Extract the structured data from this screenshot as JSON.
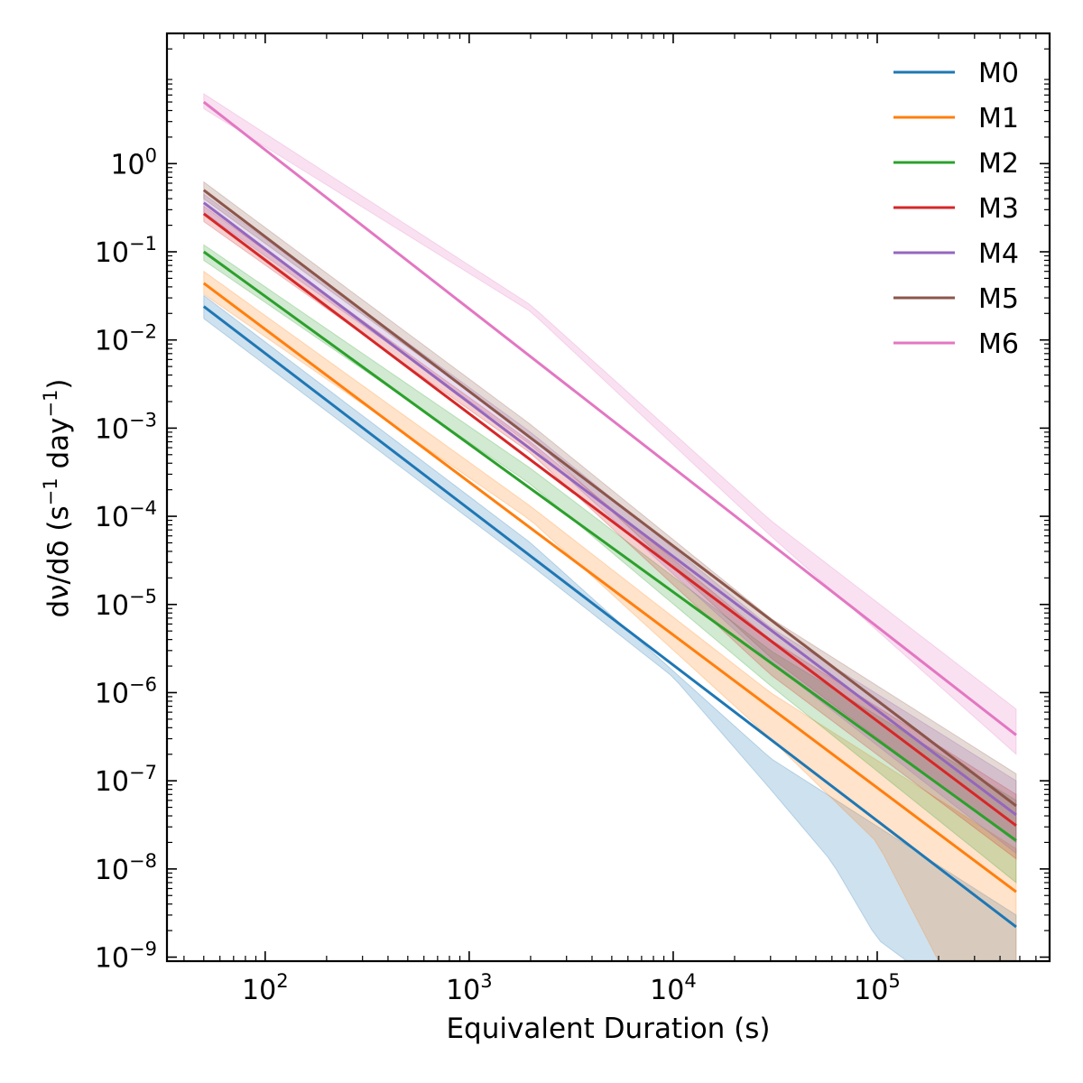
{
  "chart_data": {
    "type": "line",
    "title": "",
    "xlabel": "Equivalent Duration (s)",
    "ylabel": {
      "base": "dν/dδ (s",
      "sup1": "−1",
      "mid": " day",
      "sup2": "−1",
      "end": ")"
    },
    "x_scale": "log",
    "y_scale": "log",
    "xlim": [
      33,
      700000
    ],
    "ylim": [
      9e-10,
      30
    ],
    "grid": false,
    "legend_position": "top-right",
    "x_ticks": [
      {
        "value": 100,
        "base": "10",
        "exp": "2"
      },
      {
        "value": 1000,
        "base": "10",
        "exp": "3"
      },
      {
        "value": 10000,
        "base": "10",
        "exp": "4"
      },
      {
        "value": 100000,
        "base": "10",
        "exp": "5"
      }
    ],
    "y_ticks": [
      {
        "value": 1,
        "base": "10",
        "exp": "0"
      },
      {
        "value": 0.1,
        "base": "10",
        "exp": "−1"
      },
      {
        "value": 0.01,
        "base": "10",
        "exp": "−2"
      },
      {
        "value": 0.001,
        "base": "10",
        "exp": "−3"
      },
      {
        "value": 0.0001,
        "base": "10",
        "exp": "−4"
      },
      {
        "value": 1e-05,
        "base": "10",
        "exp": "−5"
      },
      {
        "value": 1e-06,
        "base": "10",
        "exp": "−6"
      },
      {
        "value": 1e-07,
        "base": "10",
        "exp": "−7"
      },
      {
        "value": 1e-08,
        "base": "10",
        "exp": "−8"
      },
      {
        "value": 1e-09,
        "base": "10",
        "exp": "−9"
      }
    ],
    "x_range": [
      50,
      480000
    ],
    "series": [
      {
        "name": "M0",
        "color": "#1f77b4",
        "line": [
          [
            50,
            0.024
          ],
          [
            480000,
            2.2e-09
          ]
        ],
        "band_upper": [
          [
            50,
            0.032
          ],
          [
            2000,
            5e-05
          ],
          [
            30000,
            1.8e-07
          ],
          [
            480000,
            3e-09
          ]
        ],
        "band_lower": [
          [
            50,
            0.0175
          ],
          [
            2000,
            2.8e-05
          ],
          [
            10000,
            1.5e-06
          ],
          [
            30000,
            8e-08
          ],
          [
            60000,
            1.2e-08
          ],
          [
            100000,
            1.6e-09
          ],
          [
            140000,
            9e-10
          ]
        ]
      },
      {
        "name": "M1",
        "color": "#ff7f0e",
        "line": [
          [
            50,
            0.044
          ],
          [
            480000,
            5.5e-09
          ]
        ],
        "band_upper": [
          [
            50,
            0.06
          ],
          [
            2000,
            0.00013
          ],
          [
            30000,
            1e-06
          ],
          [
            480000,
            1.7e-08
          ]
        ],
        "band_lower": [
          [
            50,
            0.033
          ],
          [
            2000,
            9e-05
          ],
          [
            30000,
            3e-07
          ],
          [
            100000,
            2e-08
          ],
          [
            200000,
            9e-10
          ]
        ]
      },
      {
        "name": "M2",
        "color": "#2ca02c",
        "line": [
          [
            50,
            0.1
          ],
          [
            480000,
            2.1e-08
          ]
        ],
        "band_upper": [
          [
            50,
            0.12
          ],
          [
            2000,
            0.00035
          ],
          [
            30000,
            3e-06
          ],
          [
            480000,
            6e-08
          ]
        ],
        "band_lower": [
          [
            50,
            0.08
          ],
          [
            2000,
            0.00023
          ],
          [
            30000,
            1.2e-06
          ],
          [
            480000,
            7e-09
          ]
        ]
      },
      {
        "name": "M3",
        "color": "#d62728",
        "line": [
          [
            50,
            0.27
          ],
          [
            480000,
            3.1e-08
          ]
        ],
        "band_upper": [
          [
            50,
            0.33
          ],
          [
            2000,
            0.0007
          ],
          [
            30000,
            4e-06
          ],
          [
            480000,
            7e-08
          ]
        ],
        "band_lower": [
          [
            50,
            0.22
          ],
          [
            2000,
            0.00052
          ],
          [
            30000,
            1.6e-06
          ],
          [
            480000,
            1.3e-08
          ]
        ]
      },
      {
        "name": "M4",
        "color": "#9467bd",
        "line": [
          [
            50,
            0.36
          ],
          [
            480000,
            4.1e-08
          ]
        ],
        "band_upper": [
          [
            50,
            0.45
          ],
          [
            2000,
            0.0009
          ],
          [
            30000,
            5.5e-06
          ],
          [
            480000,
            1e-07
          ]
        ],
        "band_lower": [
          [
            50,
            0.28
          ],
          [
            2000,
            0.00065
          ],
          [
            30000,
            2.2e-06
          ],
          [
            480000,
            1.5e-08
          ]
        ]
      },
      {
        "name": "M5",
        "color": "#8c564b",
        "line": [
          [
            50,
            0.5
          ],
          [
            480000,
            5.2e-08
          ]
        ],
        "band_upper": [
          [
            50,
            0.62
          ],
          [
            2000,
            0.0011
          ],
          [
            30000,
            7e-06
          ],
          [
            480000,
            1.2e-07
          ]
        ],
        "band_lower": [
          [
            50,
            0.4
          ],
          [
            2000,
            0.0008
          ],
          [
            30000,
            2.5e-06
          ],
          [
            480000,
            2e-08
          ]
        ]
      },
      {
        "name": "M6",
        "color": "#e377c2",
        "line": [
          [
            50,
            5.0
          ],
          [
            480000,
            3.3e-07
          ]
        ],
        "band_upper": [
          [
            50,
            6.2
          ],
          [
            2000,
            0.025
          ],
          [
            30000,
            9e-05
          ],
          [
            480000,
            6.5e-07
          ]
        ],
        "band_lower": [
          [
            50,
            4.2
          ],
          [
            2000,
            0.021
          ],
          [
            30000,
            6e-05
          ],
          [
            480000,
            2e-07
          ]
        ]
      }
    ]
  }
}
